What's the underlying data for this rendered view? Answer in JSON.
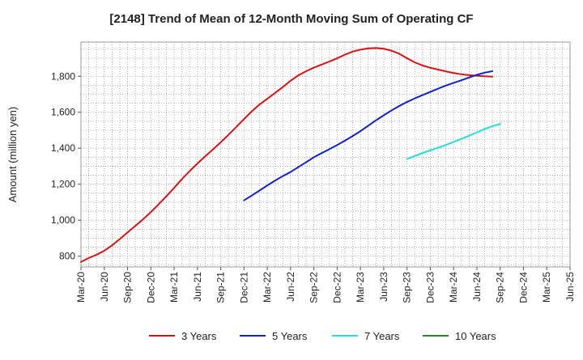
{
  "chart_data": {
    "type": "line",
    "title": "[2148]  Trend of Mean of 12-Month Moving Sum of Operating CF",
    "xlabel": "",
    "ylabel": "Amount (million yen)",
    "ylim": [
      740,
      1990
    ],
    "yticks": [
      800,
      1000,
      1200,
      1400,
      1600,
      1800
    ],
    "ytick_labels": [
      "800",
      "1,000",
      "1,200",
      "1,400",
      "1,600",
      "1,800"
    ],
    "grid": true,
    "legend_position": "bottom",
    "x_tick_labels": [
      "Mar-20",
      "Jun-20",
      "Sep-20",
      "Dec-20",
      "Mar-21",
      "Jun-21",
      "Sep-21",
      "Dec-21",
      "Mar-22",
      "Jun-22",
      "Sep-22",
      "Dec-22",
      "Mar-23",
      "Jun-23",
      "Sep-23",
      "Dec-23",
      "Mar-24",
      "Jun-24",
      "Sep-24",
      "Dec-24",
      "Mar-25",
      "Jun-25"
    ],
    "series": [
      {
        "name": "3 Years",
        "color": "#dd1111",
        "start_index": 0,
        "values": [
          768,
          790,
          808,
          830,
          860,
          895,
          932,
          968,
          1005,
          1045,
          1088,
          1133,
          1180,
          1228,
          1273,
          1315,
          1355,
          1393,
          1433,
          1475,
          1518,
          1562,
          1605,
          1643,
          1675,
          1707,
          1740,
          1775,
          1805,
          1828,
          1848,
          1865,
          1882,
          1900,
          1920,
          1937,
          1948,
          1955,
          1957,
          1953,
          1942,
          1925,
          1900,
          1877,
          1860,
          1847,
          1837,
          1827,
          1818,
          1811,
          1806,
          1803,
          1800,
          1798
        ]
      },
      {
        "name": "5 Years",
        "color": "#1122cc",
        "start_index": 21,
        "values": [
          1110,
          1137,
          1165,
          1193,
          1220,
          1245,
          1268,
          1295,
          1322,
          1350,
          1373,
          1395,
          1418,
          1442,
          1468,
          1495,
          1525,
          1555,
          1583,
          1610,
          1635,
          1657,
          1677,
          1695,
          1713,
          1731,
          1748,
          1763,
          1778,
          1793,
          1808,
          1820,
          1828
        ]
      },
      {
        "name": "7 Years",
        "color": "#22dddd",
        "start_index": 42,
        "values": [
          1340,
          1357,
          1373,
          1388,
          1403,
          1418,
          1435,
          1452,
          1470,
          1488,
          1507,
          1522,
          1535
        ]
      },
      {
        "name": "10 Years",
        "color": "#22882a",
        "start_index": 0,
        "values": []
      }
    ]
  }
}
